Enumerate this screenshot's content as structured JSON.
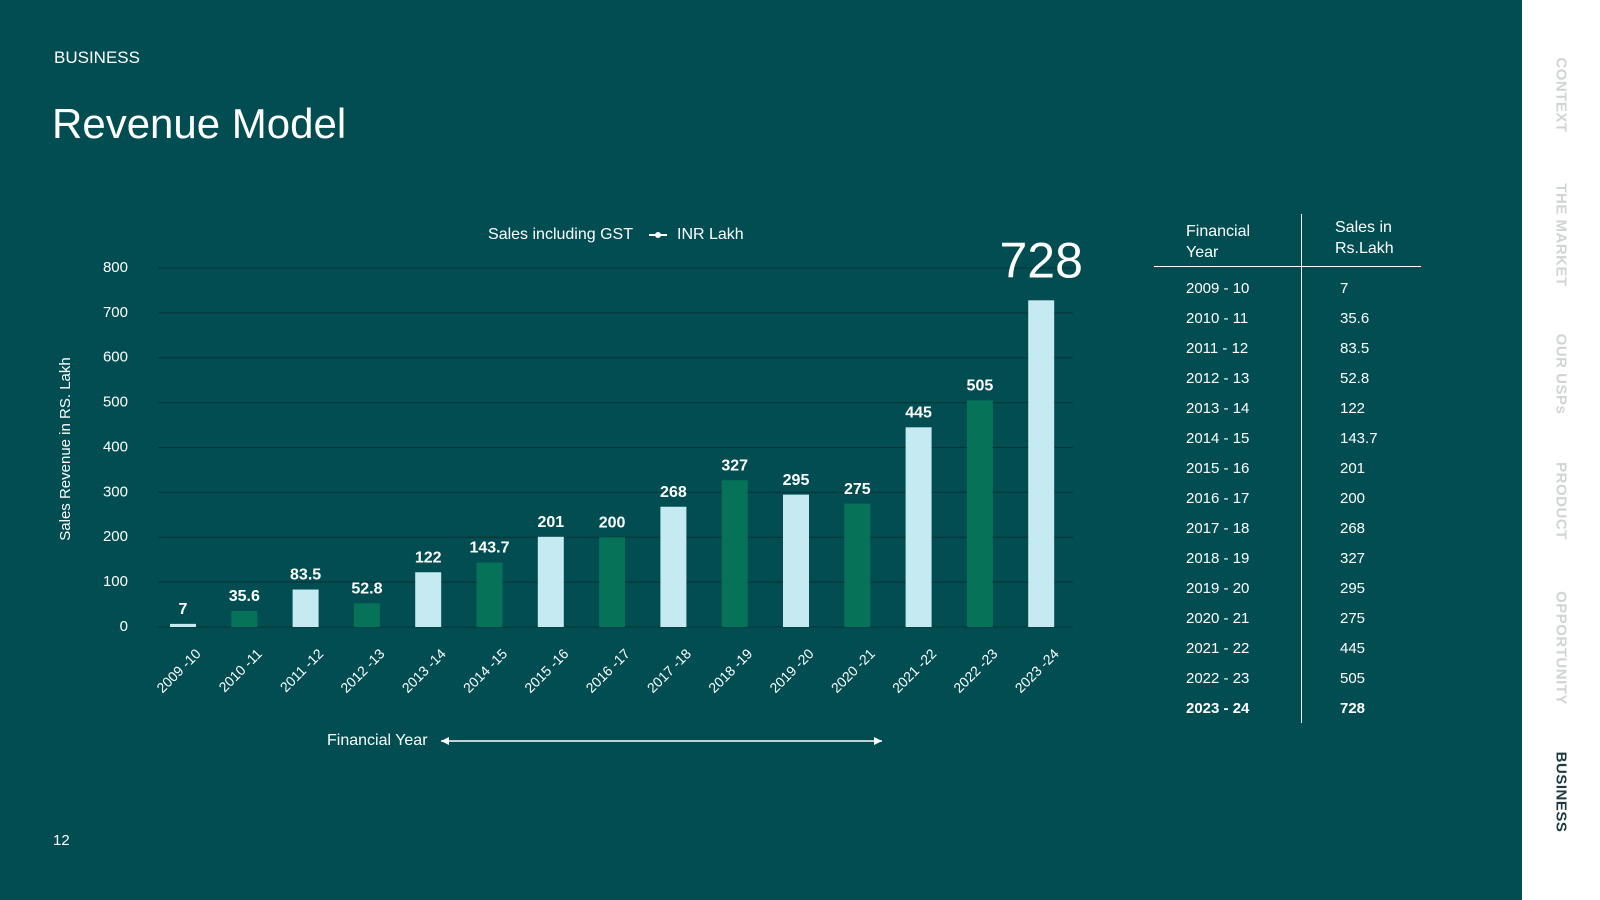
{
  "header": {
    "section": "BUSINESS",
    "title": "Revenue Model",
    "page_number": "12"
  },
  "chart_data": {
    "type": "bar",
    "legend": {
      "label": "Sales including GST",
      "unit": "INR Lakh"
    },
    "y_label": "Sales Revenue in RS. Lakh",
    "x_label": "Financial Year",
    "categories": [
      "2009 -10",
      "2010 -11",
      "2011 -12",
      "2012 -13",
      "2013 -14",
      "2014 -15",
      "2015 -16",
      "2016 -17",
      "2017 -18",
      "2018 -19",
      "2019 -20",
      "2020 -21",
      "2021 -22",
      "2022 -23",
      "2023 -24"
    ],
    "values": [
      7,
      35.6,
      83.5,
      52.8,
      122,
      143.7,
      201,
      200,
      268,
      327,
      295,
      275,
      445,
      505,
      728
    ],
    "colors": [
      "#c6eaf2",
      "#067258",
      "#c6eaf2",
      "#067258",
      "#c6eaf2",
      "#067258",
      "#c6eaf2",
      "#067258",
      "#c6eaf2",
      "#067258",
      "#c6eaf2",
      "#067258",
      "#c6eaf2",
      "#067258",
      "#c6eaf2"
    ],
    "ylim": [
      0,
      800
    ],
    "yticks": [
      0,
      100,
      200,
      300,
      400,
      500,
      600,
      700,
      800
    ],
    "grid": true
  },
  "table": {
    "header": [
      "Financial Year",
      "Sales in Rs.Lakh"
    ],
    "rows": [
      [
        "2009 - 10",
        7
      ],
      [
        "2010 - 11",
        35.6
      ],
      [
        "2011 - 12",
        83.5
      ],
      [
        "2012 - 13",
        52.8
      ],
      [
        "2013 - 14",
        122
      ],
      [
        "2014 - 15",
        143.7
      ],
      [
        "2015 - 16",
        201
      ],
      [
        "2016 - 17",
        200
      ],
      [
        "2017 - 18",
        268
      ],
      [
        "2018 - 19",
        327
      ],
      [
        "2019 - 20",
        295
      ],
      [
        "2020 - 21",
        275
      ],
      [
        "2021 - 22",
        445
      ],
      [
        "2022 - 23",
        505
      ],
      [
        "2023 - 24",
        728
      ]
    ]
  },
  "nav": {
    "items": [
      "CONTEXT",
      "THE MARKET",
      "OUR USPs",
      "PRODUCT",
      "OPPORTUNITY",
      "BUSINESS"
    ],
    "active": 5
  }
}
